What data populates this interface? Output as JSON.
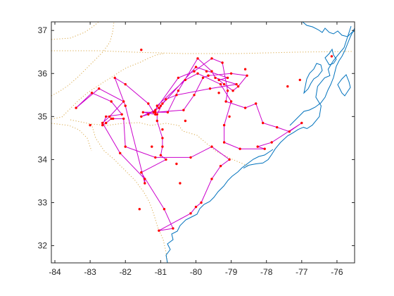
{
  "chart_data": {
    "type": "line",
    "title": "",
    "xlabel": "",
    "ylabel": "",
    "xlim": [
      -84.1,
      -75.5
    ],
    "ylim": [
      31.6,
      37.2
    ],
    "grid": false,
    "legend": "none",
    "xticks": [
      -84,
      -83,
      -82,
      -81,
      -80,
      -79,
      -78,
      -77,
      -76
    ],
    "yticks": [
      32,
      33,
      34,
      35,
      36,
      37
    ],
    "colors": {
      "route": "#cc00cc",
      "cities": "#ff0000",
      "coastline": "#0072bd",
      "borders": "#d9a94a",
      "axes": "#262626"
    },
    "series": [
      {
        "role": "route",
        "x": [
          -83.4,
          -82.75,
          -82.05,
          -82.45,
          -82.65,
          -82.15,
          -81.45,
          -81.45,
          -82.0,
          -82.3,
          -82.0,
          -81.35,
          -81.2,
          -80.5,
          -80.05,
          -79.55,
          -79.25,
          -79.1,
          -79.15,
          -78.6,
          -78.3,
          -78.1,
          -77.7,
          -77.35,
          -77.0,
          -77.85,
          -78.25,
          -78.05,
          -78.75,
          -79.2,
          -79.2,
          -79.0,
          -79.3,
          -79.95,
          -80.3,
          -81.1,
          -81.15,
          -80.35,
          -80.05,
          -79.8,
          -79.65,
          -79.0,
          -78.55,
          -78.8,
          -78.95,
          -79.2,
          -79.35,
          -79.1,
          -80.0,
          -81.05,
          -81.35,
          -81.55,
          -81.15,
          -81.15,
          -81.5,
          -80.8,
          -80.5,
          -79.95,
          -79.55,
          -79.45,
          -78.85,
          -79.6,
          -80.55,
          -80.85,
          -80.95,
          -81.1,
          -81.1,
          -80.95,
          -80.95,
          -81.0,
          -80.85,
          -81.55,
          -80.9,
          -80.65,
          -81.05,
          -80.15,
          -80.0,
          -79.85,
          -79.55,
          -79.3,
          -79.05,
          -79.55,
          -80.15,
          -81.15,
          -82.0,
          -82.05,
          -82.35,
          -82.4,
          -82.55,
          -82.65,
          -82.55,
          -82.1,
          -82.4,
          -82.95,
          -83.4
        ],
        "y": [
          35.2,
          35.65,
          35.35,
          35.0,
          34.85,
          34.15,
          33.55,
          33.45,
          35.25,
          35.9,
          35.75,
          35.3,
          35.1,
          35.9,
          36.05,
          36.35,
          36.25,
          35.6,
          35.35,
          35.2,
          35.3,
          34.85,
          34.75,
          34.65,
          34.85,
          34.4,
          34.3,
          34.25,
          34.25,
          34.4,
          34.8,
          35.35,
          35.75,
          36.0,
          35.85,
          35.25,
          35.1,
          35.15,
          35.5,
          35.9,
          35.95,
          36.0,
          35.95,
          35.7,
          35.6,
          35.75,
          35.85,
          35.9,
          36.15,
          35.2,
          35.05,
          35.0,
          35.15,
          35.05,
          35.1,
          35.1,
          35.6,
          36.35,
          36.05,
          35.9,
          35.75,
          35.65,
          35.5,
          35.4,
          35.3,
          35.05,
          34.9,
          34.5,
          34.3,
          34.1,
          34.0,
          33.7,
          32.85,
          32.4,
          32.35,
          32.75,
          32.9,
          33.0,
          33.55,
          33.85,
          34.0,
          34.3,
          34.05,
          34.05,
          34.3,
          34.95,
          34.95,
          34.95,
          34.85,
          34.8,
          35.0,
          35.05,
          35.35,
          35.55,
          35.2
        ]
      },
      {
        "role": "cities",
        "x": [
          -83.4,
          -82.75,
          -82.05,
          -82.45,
          -82.65,
          -82.15,
          -81.45,
          -81.45,
          -82.0,
          -82.3,
          -82.0,
          -81.35,
          -81.2,
          -80.5,
          -80.05,
          -79.55,
          -79.25,
          -79.1,
          -79.15,
          -78.6,
          -78.3,
          -78.1,
          -77.7,
          -77.35,
          -77.0,
          -77.85,
          -78.25,
          -78.05,
          -78.75,
          -79.2,
          -79.2,
          -79.0,
          -79.3,
          -79.95,
          -80.3,
          -81.1,
          -81.15,
          -80.35,
          -80.05,
          -79.8,
          -79.65,
          -79.0,
          -78.55,
          -78.8,
          -78.95,
          -79.2,
          -79.35,
          -79.1,
          -80.0,
          -81.05,
          -81.35,
          -81.55,
          -81.15,
          -81.15,
          -81.5,
          -80.8,
          -80.5,
          -79.95,
          -79.55,
          -79.45,
          -78.85,
          -79.6,
          -80.55,
          -80.85,
          -80.95,
          -81.1,
          -81.1,
          -80.95,
          -80.95,
          -81.0,
          -80.85,
          -81.55,
          -80.9,
          -80.65,
          -81.05,
          -80.15,
          -80.0,
          -79.85,
          -79.55,
          -79.3,
          -79.05,
          -79.55,
          -80.15,
          -81.15,
          -82.0,
          -82.05,
          -82.35,
          -82.4,
          -82.55,
          -82.65,
          -82.55,
          -82.1,
          -82.4,
          -82.95,
          -83.0,
          -81.55,
          -81.0,
          -80.95,
          -80.55,
          -80.45,
          -81.6,
          -81.25,
          -80.3,
          -77.4,
          -77.05,
          -76.15,
          -79.7,
          -78.6,
          -79.35,
          -79.65,
          -79.05
        ],
        "y": [
          35.2,
          35.65,
          35.35,
          35.0,
          34.85,
          34.15,
          33.55,
          33.45,
          35.25,
          35.9,
          35.75,
          35.3,
          35.1,
          35.9,
          36.05,
          36.35,
          36.25,
          35.6,
          35.35,
          35.2,
          35.3,
          34.85,
          34.75,
          34.65,
          34.85,
          34.4,
          34.3,
          34.25,
          34.25,
          34.4,
          34.8,
          35.35,
          35.75,
          36.0,
          35.85,
          35.25,
          35.1,
          35.15,
          35.5,
          35.9,
          35.95,
          36.0,
          35.95,
          35.7,
          35.6,
          35.75,
          35.85,
          35.9,
          36.15,
          35.2,
          35.05,
          35.0,
          35.15,
          35.05,
          35.1,
          35.1,
          35.6,
          36.35,
          36.05,
          35.9,
          35.75,
          35.65,
          35.5,
          35.4,
          35.3,
          35.05,
          34.9,
          34.5,
          34.3,
          34.1,
          34.0,
          33.7,
          32.85,
          32.4,
          32.35,
          32.75,
          32.9,
          33.0,
          33.55,
          33.85,
          34.0,
          34.3,
          34.05,
          34.05,
          34.3,
          34.95,
          34.95,
          34.95,
          34.85,
          34.8,
          35.0,
          35.05,
          35.35,
          35.55,
          34.8,
          36.55,
          35.25,
          34.7,
          33.9,
          33.45,
          32.85,
          34.3,
          34.9,
          35.7,
          35.85,
          36.4,
          36.05,
          36.1,
          35.55,
          35.95,
          35.0
        ]
      }
    ],
    "coastline": {
      "x": [
        -78.65,
        -78.5,
        -78.3,
        -78.1,
        -77.95,
        -77.85,
        -77.75,
        -77.6,
        -77.4,
        -77.25,
        -77.1,
        -76.95,
        -76.85,
        -76.7,
        -76.5,
        -76.45,
        -76.6,
        -76.55,
        -76.35,
        -76.2,
        -76.25,
        -76.1,
        -75.95,
        -75.8,
        -75.7,
        -75.6
      ],
      "y": [
        33.8,
        33.87,
        33.9,
        33.92,
        34.0,
        34.12,
        34.25,
        34.4,
        34.55,
        34.62,
        34.7,
        34.75,
        34.72,
        34.8,
        35.0,
        35.25,
        35.45,
        35.7,
        35.9,
        35.95,
        36.1,
        36.3,
        36.45,
        36.6,
        36.85,
        37.1
      ]
    }
  }
}
